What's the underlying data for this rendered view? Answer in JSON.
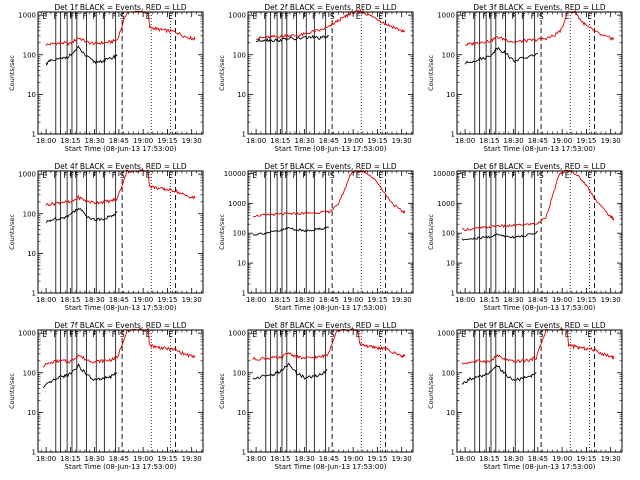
{
  "colors": {
    "events": "#000000",
    "lld": "#e00000",
    "axes": "#000000",
    "background": "#ffffff"
  },
  "chart_data": {
    "type": "line",
    "layout": "3x3 grid",
    "xlabel": "Start Time (08-Jun-13 17:53:00)",
    "ylabel": "Counts/sec",
    "x_ticks": [
      "18:00",
      "18:15",
      "18:30",
      "18:45",
      "19:00",
      "19:15",
      "19:30"
    ],
    "x_tick_minutes": [
      0,
      15,
      30,
      45,
      60,
      75,
      90
    ],
    "xlim_minutes_after_18_00": [
      -5,
      97
    ],
    "ylog": true,
    "solid_line_minutes": [
      6,
      9,
      13,
      16,
      19,
      25,
      31,
      36,
      43
    ],
    "dash_line_minutes": [
      47,
      80
    ],
    "dot_line_minutes": [
      65,
      77
    ],
    "marker_minutes": [
      -3,
      4,
      10,
      14,
      17,
      22,
      28,
      34,
      40,
      45,
      61,
      75
    ],
    "letter_markers": [
      {
        "minute": -3,
        "text": "E"
      },
      {
        "minute": 4,
        "text": "F"
      },
      {
        "minute": 10,
        "text": "F"
      },
      {
        "minute": 14,
        "text": "F"
      },
      {
        "minute": 17,
        "text": "F"
      },
      {
        "minute": 22,
        "text": "F"
      },
      {
        "minute": 28,
        "text": "F"
      },
      {
        "minute": 34,
        "text": "F"
      },
      {
        "minute": 40,
        "text": "F"
      },
      {
        "minute": 45,
        "text": "S"
      },
      {
        "minute": 61,
        "text": "E"
      },
      {
        "minute": 75,
        "text": "E"
      }
    ],
    "series_names": [
      "Events",
      "LLD"
    ],
    "panels": [
      {
        "title": "Det 1f BLACK = Events, RED = LLD",
        "yticks": [
          "1",
          "10",
          "100",
          "1000"
        ],
        "ymax": 1200,
        "events": {
          "x": [
            0,
            3,
            10,
            14,
            20,
            25,
            30,
            35,
            40,
            44
          ],
          "y": [
            60,
            70,
            80,
            90,
            150,
            90,
            65,
            70,
            80,
            100
          ]
        },
        "lld": {
          "x": [
            0,
            5,
            10,
            15,
            20,
            25,
            30,
            35,
            40,
            44,
            50,
            63,
            64,
            68,
            72,
            76,
            80,
            85,
            90,
            92
          ],
          "y": [
            180,
            190,
            200,
            190,
            270,
            210,
            190,
            200,
            210,
            240,
            1200,
            1200,
            500,
            450,
            420,
            400,
            380,
            300,
            260,
            250
          ]
        }
      },
      {
        "title": "Det 2f BLACK = Events, RED = LLD",
        "yticks": [
          "1",
          "10",
          "100",
          "1000"
        ],
        "ymax": 1200,
        "events": {
          "x": [
            0,
            5,
            10,
            15,
            20,
            25,
            30,
            35,
            40,
            45
          ],
          "y": [
            220,
            240,
            230,
            235,
            260,
            250,
            270,
            280,
            260,
            300
          ]
        },
        "lld": {
          "x": [
            0,
            5,
            10,
            15,
            20,
            25,
            30,
            35,
            40,
            45,
            50,
            55,
            58,
            62,
            66,
            70,
            75,
            80,
            85,
            90,
            92
          ],
          "y": [
            260,
            270,
            280,
            290,
            310,
            300,
            330,
            380,
            420,
            500,
            700,
            900,
            1100,
            1200,
            1200,
            1000,
            800,
            600,
            500,
            400,
            380
          ]
        }
      },
      {
        "title": "Det 3f BLACK = Events, RED = LLD",
        "yticks": [
          "1",
          "10",
          "100",
          "1000"
        ],
        "ymax": 1200,
        "events": {
          "x": [
            0,
            5,
            10,
            15,
            20,
            25,
            30,
            35,
            40,
            45
          ],
          "y": [
            60,
            70,
            80,
            90,
            150,
            110,
            70,
            80,
            90,
            110
          ]
        },
        "lld": {
          "x": [
            0,
            5,
            10,
            15,
            20,
            25,
            30,
            35,
            40,
            45,
            50,
            55,
            60,
            63,
            68,
            72,
            76,
            80,
            85,
            90,
            92
          ],
          "y": [
            180,
            190,
            210,
            220,
            280,
            240,
            210,
            220,
            230,
            240,
            260,
            300,
            450,
            1200,
            1200,
            700,
            500,
            400,
            300,
            260,
            250
          ]
        }
      },
      {
        "title": "Det 4f BLACK = Events, RED = LLD",
        "yticks": [
          "1",
          "10",
          "100",
          "1000"
        ],
        "ymax": 1200,
        "events": {
          "x": [
            0,
            3,
            10,
            14,
            20,
            25,
            30,
            35,
            40,
            44
          ],
          "y": [
            60,
            70,
            80,
            90,
            140,
            90,
            70,
            75,
            85,
            110
          ]
        },
        "lld": {
          "x": [
            0,
            5,
            10,
            15,
            20,
            25,
            30,
            35,
            40,
            44,
            50,
            63,
            64,
            68,
            72,
            76,
            80,
            85,
            90,
            92
          ],
          "y": [
            170,
            180,
            200,
            190,
            260,
            210,
            190,
            200,
            210,
            240,
            1200,
            1200,
            500,
            450,
            420,
            400,
            380,
            300,
            260,
            250
          ]
        }
      },
      {
        "title": "Det 5f BLACK = Events, RED = LLD",
        "yticks": [
          "1",
          "10",
          "100",
          "1000",
          "10000"
        ],
        "ymax": 12000,
        "events": {
          "x": [
            -2,
            5,
            10,
            15,
            20,
            25,
            30,
            35,
            40,
            45
          ],
          "y": [
            90,
            100,
            110,
            120,
            150,
            130,
            120,
            130,
            140,
            160
          ]
        },
        "lld": {
          "x": [
            -2,
            5,
            10,
            15,
            20,
            25,
            30,
            35,
            40,
            45,
            50,
            55,
            58,
            62,
            66,
            70,
            75,
            80,
            85,
            90,
            92
          ],
          "y": [
            380,
            400,
            420,
            430,
            450,
            440,
            470,
            480,
            500,
            520,
            800,
            3000,
            9000,
            12000,
            12000,
            9000,
            5000,
            2000,
            900,
            550,
            500
          ]
        }
      },
      {
        "title": "Det 6f BLACK = Events, RED = LLD",
        "yticks": [
          "1",
          "10",
          "100",
          "1000",
          "10000"
        ],
        "ymax": 12000,
        "events": {
          "x": [
            -2,
            5,
            10,
            15,
            20,
            25,
            30,
            35,
            40,
            45
          ],
          "y": [
            60,
            65,
            70,
            75,
            90,
            80,
            75,
            80,
            90,
            110
          ]
        },
        "lld": {
          "x": [
            -2,
            5,
            10,
            15,
            20,
            25,
            30,
            35,
            40,
            45,
            50,
            55,
            58,
            62,
            66,
            70,
            75,
            80,
            85,
            90,
            92
          ],
          "y": [
            130,
            140,
            150,
            160,
            180,
            170,
            180,
            190,
            200,
            210,
            350,
            2500,
            9000,
            12000,
            12000,
            8000,
            4000,
            1500,
            700,
            350,
            300
          ]
        }
      },
      {
        "title": "Det 7f BLACK = Events, RED = LLD",
        "yticks": [
          "1",
          "10",
          "100",
          "1000"
        ],
        "ymax": 1200,
        "events": {
          "x": [
            -2,
            3,
            10,
            14,
            20,
            25,
            30,
            35,
            40,
            44
          ],
          "y": [
            40,
            60,
            80,
            90,
            150,
            90,
            65,
            70,
            80,
            100
          ]
        },
        "lld": {
          "x": [
            -2,
            5,
            10,
            15,
            20,
            25,
            30,
            35,
            40,
            44,
            50,
            63,
            64,
            68,
            72,
            76,
            80,
            85,
            90,
            92
          ],
          "y": [
            150,
            190,
            200,
            190,
            280,
            210,
            190,
            200,
            210,
            240,
            1200,
            1200,
            500,
            450,
            420,
            400,
            380,
            300,
            260,
            250
          ]
        }
      },
      {
        "title": "Det 8f BLACK = Events, RED = LLD",
        "yticks": [
          "1",
          "10",
          "100",
          "1000"
        ],
        "ymax": 1200,
        "events": {
          "x": [
            -2,
            3,
            10,
            14,
            20,
            25,
            30,
            35,
            40,
            44
          ],
          "y": [
            70,
            80,
            90,
            100,
            160,
            100,
            75,
            80,
            90,
            120
          ]
        },
        "lld": {
          "x": [
            -2,
            5,
            10,
            15,
            20,
            25,
            30,
            35,
            40,
            44,
            50,
            63,
            64,
            68,
            72,
            76,
            80,
            85,
            90,
            92
          ],
          "y": [
            220,
            230,
            240,
            230,
            320,
            250,
            230,
            240,
            250,
            280,
            1200,
            1200,
            550,
            480,
            440,
            420,
            400,
            320,
            270,
            260
          ]
        }
      },
      {
        "title": "Det 9f BLACK = Events, RED = LLD",
        "yticks": [
          "1",
          "10",
          "100",
          "1000"
        ],
        "ymax": 1200,
        "events": {
          "x": [
            -2,
            3,
            10,
            14,
            20,
            25,
            30,
            35,
            40,
            44
          ],
          "y": [
            50,
            70,
            80,
            90,
            150,
            90,
            65,
            70,
            80,
            100
          ]
        },
        "lld": {
          "x": [
            -2,
            5,
            10,
            15,
            20,
            25,
            30,
            35,
            40,
            44,
            50,
            63,
            64,
            68,
            72,
            76,
            80,
            85,
            90,
            92
          ],
          "y": [
            170,
            190,
            200,
            190,
            270,
            210,
            190,
            200,
            210,
            240,
            1200,
            1200,
            500,
            450,
            420,
            400,
            380,
            300,
            260,
            250
          ]
        }
      }
    ]
  }
}
